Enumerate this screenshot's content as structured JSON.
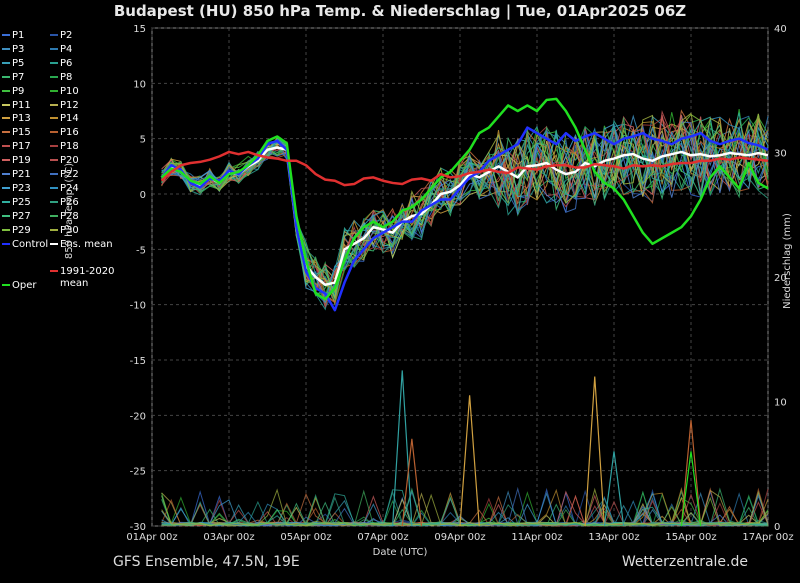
{
  "title": "Budapest  (HU)  850 hPa Temp. & Niederschlag | Tue, 01Apr2025 06Z",
  "footer_left": "GFS Ensemble, 47.5N, 19E",
  "footer_right": "Wetterzentrale.de",
  "legend": [
    {
      "label": "P1",
      "color": "#3a6fd8"
    },
    {
      "label": "P2",
      "color": "#2a55a8"
    },
    {
      "label": "P3",
      "color": "#3f8fc0"
    },
    {
      "label": "P4",
      "color": "#2e7ab0"
    },
    {
      "label": "P5",
      "color": "#38a0b8"
    },
    {
      "label": "P6",
      "color": "#2aa090"
    },
    {
      "label": "P7",
      "color": "#3ab870"
    },
    {
      "label": "P8",
      "color": "#2aa850"
    },
    {
      "label": "P9",
      "color": "#40c040"
    },
    {
      "label": "P10",
      "color": "#30b030"
    },
    {
      "label": "P11",
      "color": "#c8c860"
    },
    {
      "label": "P12",
      "color": "#b8b050"
    },
    {
      "label": "P13",
      "color": "#d0a040"
    },
    {
      "label": "P14",
      "color": "#c09030"
    },
    {
      "label": "P15",
      "color": "#c87040"
    },
    {
      "label": "P16",
      "color": "#b86030"
    },
    {
      "label": "P17",
      "color": "#c05050"
    },
    {
      "label": "P18",
      "color": "#a84040"
    },
    {
      "label": "P19",
      "color": "#d06060"
    },
    {
      "label": "P20",
      "color": "#b85050"
    },
    {
      "label": "P21",
      "color": "#5080d0"
    },
    {
      "label": "P22",
      "color": "#4070c0"
    },
    {
      "label": "P23",
      "color": "#40a0d0"
    },
    {
      "label": "P24",
      "color": "#3090c0"
    },
    {
      "label": "P25",
      "color": "#30b0a0"
    },
    {
      "label": "P26",
      "color": "#30a080"
    },
    {
      "label": "P27",
      "color": "#40c080"
    },
    {
      "label": "P28",
      "color": "#40b060"
    },
    {
      "label": "P29",
      "color": "#80c040"
    },
    {
      "label": "P30",
      "color": "#a0b040"
    },
    {
      "label": "Control",
      "color": "#2030ff"
    },
    {
      "label": "Ens. mean",
      "color": "#ffffff"
    },
    {
      "label": "1991-2020 mean",
      "color": "#e03030"
    },
    {
      "label": "Oper",
      "color": "#20e020"
    }
  ],
  "chart_data": {
    "type": "line",
    "xlabel": "Date (UTC)",
    "ylabel_left": "850 hPa Temp. (°C)",
    "ylabel_right": "Niederschlag (mm)",
    "xlim": [
      "01Apr 00z",
      "17Apr 00z"
    ],
    "ylim_left": [
      -30,
      15
    ],
    "ylim_right": [
      0,
      40
    ],
    "xticks": [
      "01Apr 00z",
      "03Apr 00z",
      "05Apr 00z",
      "07Apr 00z",
      "09Apr 00z",
      "11Apr 00z",
      "13Apr 00z",
      "15Apr 00z",
      "17Apr 00z"
    ],
    "yticks_left": [
      15,
      10,
      5,
      0,
      -5,
      -10,
      -15,
      -20,
      -25,
      -30
    ],
    "yticks_right": [
      40,
      30,
      20,
      10,
      0
    ],
    "grid": true,
    "x_days": [
      0.25,
      0.5,
      0.75,
      1,
      1.25,
      1.5,
      1.75,
      2,
      2.25,
      2.5,
      2.75,
      3,
      3.25,
      3.5,
      3.75,
      4,
      4.25,
      4.5,
      4.75,
      5,
      5.25,
      5.5,
      5.75,
      6,
      6.25,
      6.5,
      6.75,
      7,
      7.25,
      7.5,
      7.75,
      8,
      8.25,
      8.5,
      8.75,
      9,
      9.25,
      9.5,
      9.75,
      10,
      10.25,
      10.5,
      10.75,
      11,
      11.25,
      11.5,
      11.75,
      12,
      12.25,
      12.5,
      12.75,
      13,
      13.25,
      13.5,
      13.75,
      14,
      14.25,
      14.5,
      14.75,
      15,
      15.25,
      15.5,
      15.75,
      16
    ],
    "series": [
      {
        "name": "Ens. mean",
        "color": "#ffffff",
        "width": 2.5,
        "values": [
          1.5,
          2.5,
          2.2,
          1.0,
          0.8,
          1.5,
          1.0,
          2.0,
          1.8,
          2.5,
          3.0,
          4.0,
          4.2,
          4.0,
          -3,
          -6.5,
          -7.5,
          -8.2,
          -8.0,
          -5,
          -4.5,
          -4,
          -3,
          -3.2,
          -3.5,
          -2.5,
          -2.0,
          -1.8,
          -1.0,
          0,
          0.2,
          0.8,
          1.8,
          1.5,
          2.0,
          2.5,
          2.0,
          1.5,
          2.5,
          2.6,
          2.8,
          2.2,
          1.8,
          2.0,
          2.8,
          2.5,
          3.0,
          3.2,
          3.5,
          3.6,
          3.2,
          3.0,
          3.4,
          3.6,
          3.8,
          3.5,
          3.6,
          3.4,
          3.5,
          3.7,
          3.6,
          3.5,
          3.7,
          3.5
        ]
      },
      {
        "name": "Control",
        "color": "#2030ff",
        "width": 2.5,
        "values": [
          1.5,
          2.6,
          2.2,
          1.0,
          0.6,
          1.4,
          1.2,
          2.1,
          1.8,
          2.6,
          3.2,
          4.5,
          4.8,
          4.0,
          -3,
          -7.0,
          -8.5,
          -9.0,
          -10.5,
          -8,
          -6,
          -5,
          -4,
          -3.5,
          -3,
          -2.5,
          -2.5,
          -1.5,
          -1.0,
          -0.5,
          -0.5,
          0.5,
          1.5,
          2,
          3,
          3.5,
          4,
          4.5,
          6,
          5.5,
          5,
          4.5,
          5.5,
          4.8,
          5.2,
          5.5,
          5,
          4.5,
          5,
          5.2,
          5.5,
          5,
          4.8,
          4.5,
          5,
          5.2,
          5.5,
          4.8,
          4.5,
          4.8,
          5.0,
          4.6,
          4.4,
          4.0
        ]
      },
      {
        "name": "Oper",
        "color": "#20e020",
        "width": 2.5,
        "values": [
          1.5,
          2.3,
          2.0,
          1.2,
          0.9,
          1.6,
          1.0,
          1.8,
          2.0,
          2.6,
          3.5,
          4.8,
          5.2,
          4.6,
          -2,
          -6,
          -9,
          -9.5,
          -8.5,
          -6,
          -4,
          -3,
          -2.5,
          -3,
          -2.5,
          -1.5,
          -1.2,
          -0.5,
          0.5,
          1.5,
          2,
          3,
          4,
          5.5,
          6,
          7,
          8,
          7.5,
          8,
          7.5,
          8.5,
          8.6,
          7.5,
          6,
          4,
          2,
          1,
          0.5,
          -0.5,
          -2,
          -3.5,
          -4.5,
          -4,
          -3.5,
          -3,
          -2,
          -0.5,
          1.5,
          2.5,
          1.5,
          0.5,
          2.8,
          1.0,
          0.5
        ]
      },
      {
        "name": "1991-2020 mean",
        "color": "#e03030",
        "width": 2.5,
        "values": [
          1.2,
          2.0,
          2.6,
          2.8,
          2.9,
          3.1,
          3.4,
          3.8,
          3.6,
          3.8,
          3.5,
          3.3,
          3.2,
          3.0,
          3.0,
          2.6,
          1.8,
          1.3,
          1.2,
          0.8,
          0.9,
          1.4,
          1.5,
          1.2,
          1.0,
          0.9,
          1.3,
          1.4,
          1.2,
          1.8,
          1.5,
          1.6,
          1.9,
          2.0,
          2.2,
          2.0,
          1.9,
          2.4,
          2.3,
          2.2,
          2.5,
          2.6,
          2.6,
          2.4,
          2.4,
          2.7,
          2.6,
          2.5,
          2.3,
          2.6,
          2.5,
          2.6,
          2.5,
          2.7,
          2.8,
          2.8,
          3.0,
          3.0,
          3.2,
          3.1,
          3.3,
          3.2,
          3.1,
          3.0
        ]
      }
    ],
    "precip_spikes_mm": [
      {
        "x": 6.5,
        "value": 12.5,
        "color": "#30a0a0"
      },
      {
        "x": 6.75,
        "value": 7,
        "color": "#b86030"
      },
      {
        "x": 8.25,
        "value": 10.5,
        "color": "#d0a040"
      },
      {
        "x": 11.5,
        "value": 12,
        "color": "#d0a040"
      },
      {
        "x": 12.0,
        "value": 6,
        "color": "#30a0a0"
      },
      {
        "x": 14.0,
        "value": 8.5,
        "color": "#b86030"
      },
      {
        "x": 14.0,
        "value": 6,
        "color": "#20e020"
      }
    ]
  }
}
